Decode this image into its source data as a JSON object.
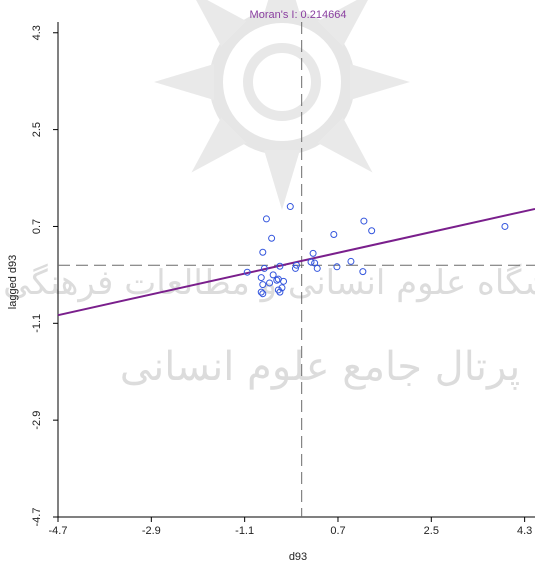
{
  "chart_data": {
    "type": "scatter",
    "title": "Moran's I: 0.214664",
    "xlabel": "d93",
    "ylabel": "lagged d93",
    "xlim": [
      -4.7,
      4.5
    ],
    "ylim": [
      -4.7,
      4.5
    ],
    "xticks": [
      "-4.7",
      "-2.9",
      "-1.1",
      "0.7",
      "2.5",
      "4.3"
    ],
    "yticks": [
      "-4.7",
      "-2.9",
      "-1.1",
      "0.7",
      "2.5",
      "4.3"
    ],
    "x_reference": 0,
    "y_reference": -0.02,
    "regression": {
      "slope": 0.214664,
      "intercept": 0.06
    },
    "points": [
      {
        "x": -1.05,
        "y": -0.15
      },
      {
        "x": -0.78,
        "y": -0.52
      },
      {
        "x": -0.75,
        "y": -0.55
      },
      {
        "x": -0.78,
        "y": -0.25
      },
      {
        "x": -0.75,
        "y": -0.38
      },
      {
        "x": -0.72,
        "y": -0.08
      },
      {
        "x": -0.62,
        "y": -0.35
      },
      {
        "x": -0.55,
        "y": -0.2
      },
      {
        "x": -0.48,
        "y": -0.3
      },
      {
        "x": -0.45,
        "y": -0.28
      },
      {
        "x": -0.45,
        "y": -0.48
      },
      {
        "x": -0.42,
        "y": -0.52
      },
      {
        "x": -0.38,
        "y": -0.44
      },
      {
        "x": -0.35,
        "y": -0.32
      },
      {
        "x": -0.42,
        "y": -0.04
      },
      {
        "x": -0.68,
        "y": 0.84
      },
      {
        "x": -0.58,
        "y": 0.48
      },
      {
        "x": -0.75,
        "y": 0.22
      },
      {
        "x": -0.22,
        "y": 1.07
      },
      {
        "x": -0.12,
        "y": -0.08
      },
      {
        "x": -0.1,
        "y": -0.02
      },
      {
        "x": 0.18,
        "y": 0.04
      },
      {
        "x": 0.22,
        "y": 0.2
      },
      {
        "x": 0.25,
        "y": 0.02
      },
      {
        "x": 0.3,
        "y": -0.08
      },
      {
        "x": 0.62,
        "y": 0.55
      },
      {
        "x": 0.68,
        "y": -0.05
      },
      {
        "x": 0.95,
        "y": 0.05
      },
      {
        "x": 1.18,
        "y": -0.14
      },
      {
        "x": 1.2,
        "y": 0.8
      },
      {
        "x": 1.35,
        "y": 0.62
      },
      {
        "x": 3.92,
        "y": 0.7
      }
    ],
    "colors": {
      "points": "#3355dd",
      "regression": "#7a1f8c",
      "title": "#8a3fa0",
      "reference_lines": "#6a6a6a",
      "axis": "#000000"
    },
    "grid": false
  }
}
